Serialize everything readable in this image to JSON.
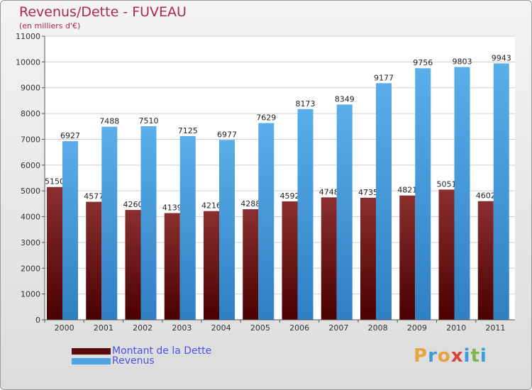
{
  "chart_data": {
    "type": "bar",
    "title": "Revenus/Dette - FUVEAU",
    "subtitle": "(en milliers d'€)",
    "categories": [
      "2000",
      "2001",
      "2002",
      "2003",
      "2004",
      "2005",
      "2006",
      "2007",
      "2008",
      "2009",
      "2010",
      "2011"
    ],
    "series": [
      {
        "name": "Montant de la Dette",
        "color": "#6e1010",
        "values": [
          5150,
          4577,
          4260,
          4139,
          4216,
          4288,
          4592,
          4748,
          4735,
          4821,
          5051,
          4602
        ],
        "labels": [
          "5150",
          "4577",
          "4260",
          "4139",
          "4216",
          "4288",
          "4592",
          "4748",
          "4735",
          "4821",
          "5051",
          "4602"
        ]
      },
      {
        "name": "Revenus",
        "color": "#4ea3e3",
        "values": [
          6927,
          7488,
          7510,
          7125,
          6977,
          7629,
          8173,
          8349,
          9177,
          9756,
          9803,
          9943
        ],
        "labels": [
          "6927",
          "7488",
          "7510",
          "7125",
          "6977",
          "7629",
          "8173",
          "8349",
          "9177",
          "9756",
          "9803",
          "9943"
        ]
      }
    ],
    "ylim": [
      0,
      11000
    ],
    "yticks": [
      0,
      1000,
      2000,
      3000,
      4000,
      5000,
      6000,
      7000,
      8000,
      9000,
      10000,
      11000
    ],
    "grid": true,
    "legend_position": "bottom-left"
  },
  "legend": {
    "debt_label": "Montant de la Dette",
    "revenue_label": "Revenus",
    "debt_color": "#6e1010",
    "revenue_color": "#4ea3e3"
  },
  "logo": {
    "letters": [
      "P",
      "r",
      "o",
      "x",
      "i",
      "t",
      "i"
    ],
    "colors": [
      "#e8a33c",
      "#3f9bd8",
      "#e8a33c",
      "#d8453a",
      "#3f9bd8",
      "#7ab648",
      "#3f9bd8"
    ]
  }
}
